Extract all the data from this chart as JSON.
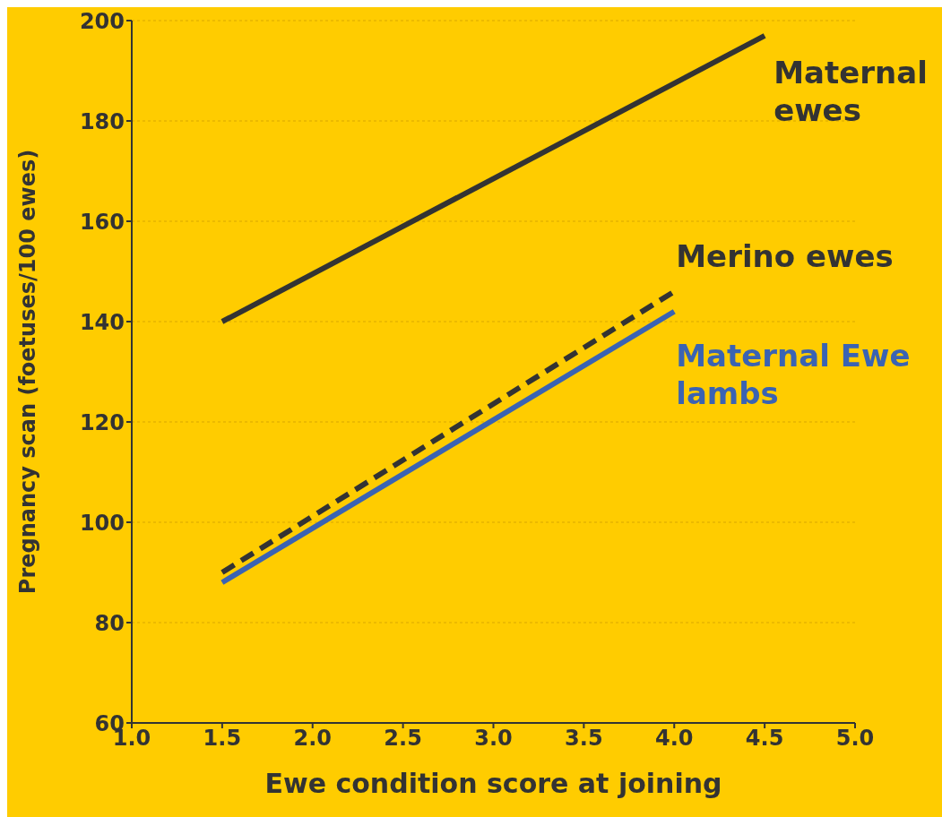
{
  "chart_data": {
    "type": "line",
    "xlabel": "Ewe condition score at joining",
    "ylabel": "Pregnancy scan (foetuses/100 ewes)",
    "xlim": [
      1.0,
      5.0
    ],
    "xticks": [
      {
        "value": 1.0,
        "label": "1.0"
      },
      {
        "value": 1.5,
        "label": "1.5"
      },
      {
        "value": 2.0,
        "label": "2.0"
      },
      {
        "value": 2.5,
        "label": "2.5"
      },
      {
        "value": 3.0,
        "label": "3.0"
      },
      {
        "value": 3.5,
        "label": "3.5"
      },
      {
        "value": 4.0,
        "label": "4.0"
      },
      {
        "value": 4.5,
        "label": "4.5"
      },
      {
        "value": 5.0,
        "label": "5.0"
      }
    ],
    "ylim": [
      60,
      200
    ],
    "yticks": [
      60,
      80,
      100,
      120,
      140,
      160,
      180,
      200
    ],
    "grid": "y",
    "marker": "none",
    "series": [
      {
        "name": "Maternal ewes",
        "color": "#333333",
        "line_style": "solid",
        "x": [
          1.5,
          4.5
        ],
        "values": [
          140,
          197
        ]
      },
      {
        "name": "Merino ewes",
        "color": "#333333",
        "line_style": "dashed",
        "x": [
          1.5,
          4.0
        ],
        "values": [
          90,
          146
        ]
      },
      {
        "name": "Maternal Ewe lambs",
        "color": "#3a63b3",
        "line_style": "solid",
        "x": [
          1.5,
          4.0
        ],
        "values": [
          88,
          142
        ]
      }
    ]
  }
}
